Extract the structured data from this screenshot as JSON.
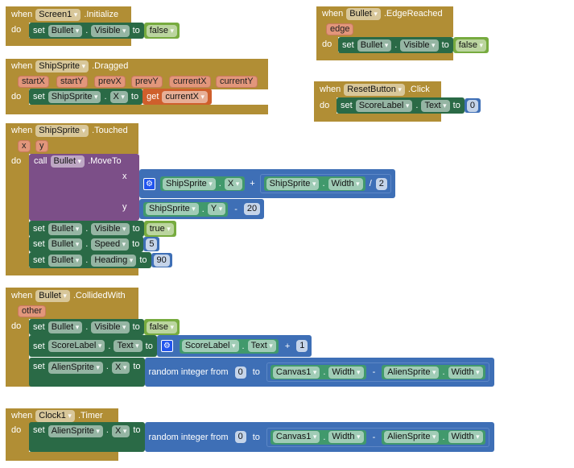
{
  "labels": {
    "when": "when",
    "do": "do",
    "set": "set",
    "to": "to",
    "call": "call",
    "get": "get",
    "dot": ".",
    "plus": "+",
    "minus": "-",
    "div": "/",
    "random": "random integer from",
    "x": "x",
    "y": "y"
  },
  "colors": {
    "event": "#b18e35",
    "setter": "#2a6a46",
    "getter": "#41996c",
    "boolean": "#77ab3f",
    "math": "#3e6fb6",
    "procedure": "#7c4f88",
    "local_get": "#cf5f2c"
  },
  "screen_init": {
    "component": "Screen1",
    "event": ".Initialize",
    "target": "Bullet",
    "prop": "Visible",
    "value": "false"
  },
  "dragged": {
    "component": "ShipSprite",
    "event": ".Dragged",
    "params": [
      "startX",
      "startY",
      "prevX",
      "prevY",
      "currentX",
      "currentY"
    ],
    "target": "ShipSprite",
    "prop": "X",
    "value": "currentX"
  },
  "touched": {
    "component": "ShipSprite",
    "event": ".Touched",
    "params": [
      "x",
      "y"
    ],
    "call_target": "Bullet",
    "method": ".MoveTo",
    "x_expr": {
      "a_comp": "ShipSprite",
      "a_prop": "X",
      "b_comp": "ShipSprite",
      "b_prop": "Width",
      "divisor": "2"
    },
    "y_expr": {
      "comp": "ShipSprite",
      "prop": "Y",
      "sub": "20"
    },
    "sets": [
      {
        "target": "Bullet",
        "prop": "Visible",
        "value": "true"
      },
      {
        "target": "Bullet",
        "prop": "Speed",
        "value": "5"
      },
      {
        "target": "Bullet",
        "prop": "Heading",
        "value": "90"
      }
    ]
  },
  "collided": {
    "component": "Bullet",
    "event": ".CollidedWith",
    "param": "other",
    "set1": {
      "target": "Bullet",
      "prop": "Visible",
      "value": "false"
    },
    "set2": {
      "target": "ScoreLabel",
      "prop": "Text",
      "comp": "ScoreLabel",
      "cprop": "Text",
      "add": "1"
    },
    "set3": {
      "target": "AlienSprite",
      "prop": "X",
      "from": "0",
      "c1": "Canvas1",
      "p1": "Width",
      "c2": "AlienSprite",
      "p2": "Width"
    }
  },
  "timer": {
    "component": "Clock1",
    "event": ".Timer",
    "target": "AlienSprite",
    "prop": "X",
    "from": "0",
    "c1": "Canvas1",
    "p1": "Width",
    "c2": "AlienSprite",
    "p2": "Width"
  },
  "edge": {
    "component": "Bullet",
    "event": ".EdgeReached",
    "param": "edge",
    "target": "Bullet",
    "prop": "Visible",
    "value": "false"
  },
  "reset": {
    "component": "ResetButton",
    "event": ".Click",
    "target": "ScoreLabel",
    "prop": "Text",
    "value": "0"
  }
}
